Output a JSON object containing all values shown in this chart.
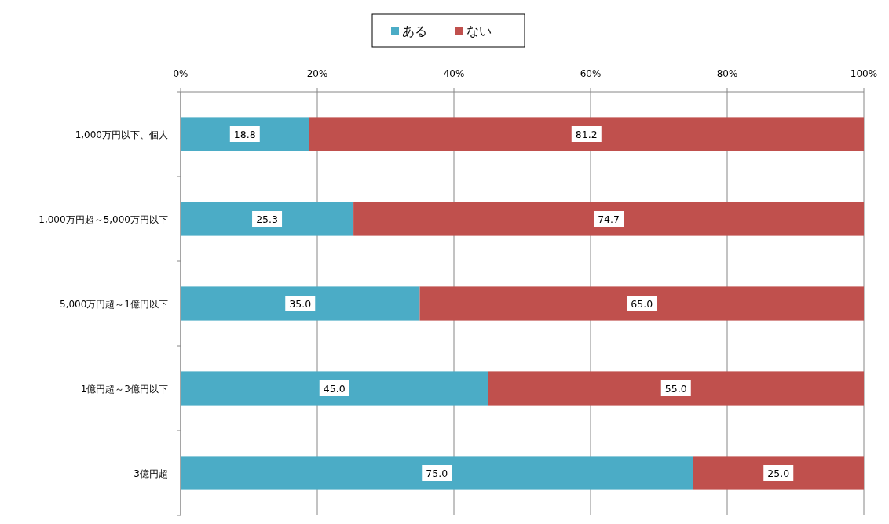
{
  "chart_data": {
    "type": "bar",
    "orientation": "horizontal",
    "stacked": true,
    "categories": [
      "1,000万円以下、個人",
      "1,000万円超～5,000万円以下",
      "5,000万円超～1億円以下",
      "1億円超～3億円以下",
      "3億円超"
    ],
    "series": [
      {
        "name": "ある",
        "color": "#4bacc6",
        "values": [
          18.8,
          25.3,
          35.0,
          45.0,
          75.0
        ],
        "value_labels": [
          "18.8",
          "25.3",
          "35.0",
          "45.0",
          "75.0"
        ]
      },
      {
        "name": "ない",
        "color": "#c0504d",
        "values": [
          81.2,
          74.7,
          65.0,
          55.0,
          25.0
        ],
        "value_labels": [
          "81.2",
          "74.7",
          "65.0",
          "55.0",
          "25.0"
        ]
      }
    ],
    "xlim": [
      0,
      100
    ],
    "xticks": [
      {
        "value": 0,
        "label": "0%"
      },
      {
        "value": 20,
        "label": "20%"
      },
      {
        "value": 40,
        "label": "40%"
      },
      {
        "value": 60,
        "label": "60%"
      },
      {
        "value": 80,
        "label": "80%"
      },
      {
        "value": 100,
        "label": "100%"
      }
    ],
    "grid": "x",
    "legend": "top"
  }
}
